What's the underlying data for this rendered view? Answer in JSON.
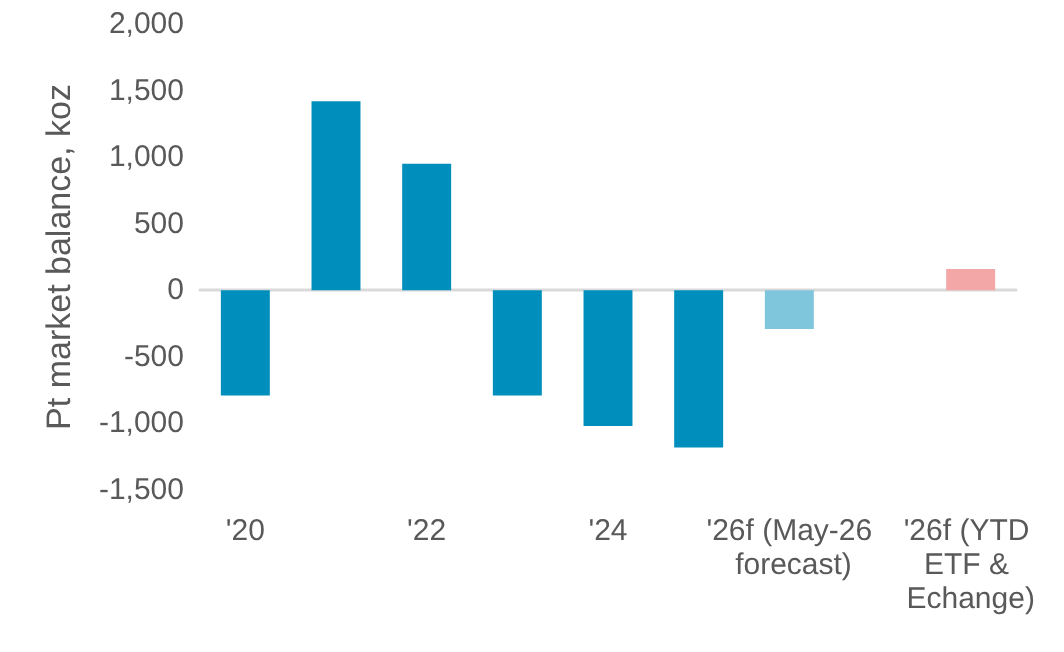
{
  "chart_data": {
    "type": "bar",
    "ylabel": "Pt market balance, koz",
    "categories": [
      "'20",
      null,
      "'22",
      null,
      "'24",
      null,
      "'26f (May-26 forecast)",
      null,
      "'26f (YTD ETF & Echange)"
    ],
    "values": [
      -790,
      1420,
      950,
      -790,
      -1020,
      -1180,
      -290,
      null,
      160
    ],
    "colors": [
      "#008fbc",
      "#008fbc",
      "#008fbc",
      "#008fbc",
      "#008fbc",
      "#008fbc",
      "#7fc6dc",
      "#008fbc",
      "#f4a7a7"
    ],
    "ylim": [
      -1500,
      2000
    ],
    "yticks": [
      {
        "value": -1500,
        "label": "-1,500"
      },
      {
        "value": -1000,
        "label": "-1,000"
      },
      -500,
      0,
      500,
      {
        "value": 1000,
        "label": "1,000"
      },
      {
        "value": 1500,
        "label": "1,500"
      },
      {
        "value": 2000,
        "label": "2,000"
      }
    ]
  }
}
